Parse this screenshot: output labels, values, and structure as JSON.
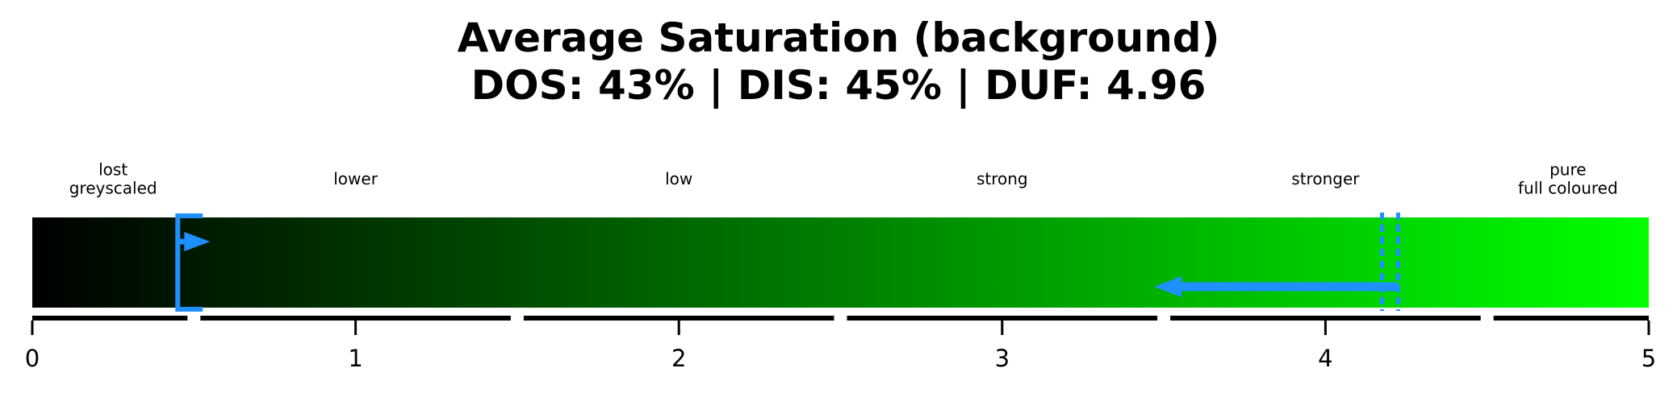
{
  "chart_data": {
    "type": "gauge",
    "title": "Average Saturation (background)",
    "subtitle": "DOS: 43% | DIS: 45% | DUF: 4.96",
    "xlim": [
      0,
      5
    ],
    "ticks": [
      0,
      1,
      2,
      3,
      4,
      5
    ],
    "tick_labels": [
      "0",
      "1",
      "2",
      "3",
      "4",
      "5"
    ],
    "segments": [
      {
        "label": [
          "lost",
          "greyscaled"
        ],
        "start": 0,
        "end": 0.5
      },
      {
        "label": [
          "lower"
        ],
        "start": 0.5,
        "end": 1.5
      },
      {
        "label": [
          "low"
        ],
        "start": 1.5,
        "end": 2.5
      },
      {
        "label": [
          "strong"
        ],
        "start": 2.5,
        "end": 3.5
      },
      {
        "label": [
          "stronger"
        ],
        "start": 3.5,
        "end": 4.5
      },
      {
        "label": [
          "pure",
          "full coloured"
        ],
        "start": 4.5,
        "end": 5
      }
    ],
    "gradient": {
      "from": "#000000",
      "to": "#00ff00"
    },
    "markers": {
      "bracket_value": 0.45,
      "bracket_arrow_to": 0.55,
      "dotted_value": 4.2,
      "arrow_to": 3.47,
      "color": "#1e90ff"
    }
  }
}
